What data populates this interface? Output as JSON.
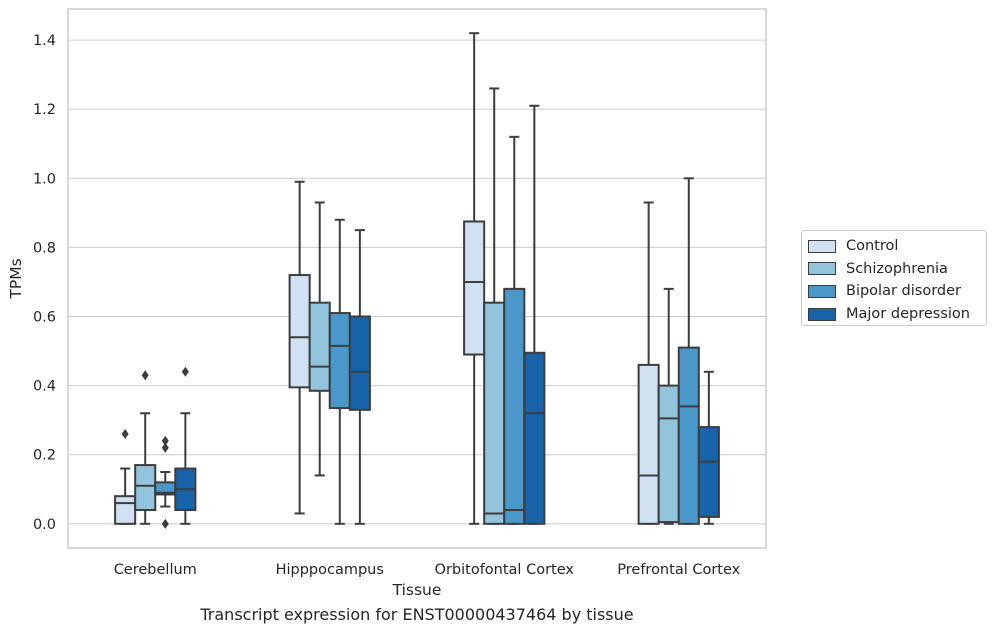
{
  "caption": "Transcript expression for ENST00000437464 by tissue",
  "chart_data": {
    "type": "boxplot",
    "title": "",
    "xlabel": "Tissue",
    "ylabel": "TPMs",
    "ylim": [
      -0.07,
      1.49
    ],
    "yticks": [
      0.0,
      0.2,
      0.4,
      0.6,
      0.8,
      1.0,
      1.2,
      1.4
    ],
    "ytick_labels": [
      "0.0",
      "0.2",
      "0.4",
      "0.6",
      "0.8",
      "1.0",
      "1.2",
      "1.4"
    ],
    "grid": "horizontal",
    "legend_position": "right",
    "categories": [
      "Cerebellum",
      "Hipppocampus",
      "Orbitofontal Cortex",
      "Prefrontal Cortex"
    ],
    "series": [
      {
        "name": "Control",
        "color": "#cfe1f2",
        "boxes": [
          {
            "whisker_low": 0.0,
            "q1": 0.0,
            "median": 0.06,
            "q3": 0.08,
            "whisker_high": 0.16,
            "outliers": [
              0.26
            ]
          },
          {
            "whisker_low": 0.03,
            "q1": 0.395,
            "median": 0.54,
            "q3": 0.72,
            "whisker_high": 0.99,
            "outliers": []
          },
          {
            "whisker_low": 0.0,
            "q1": 0.49,
            "median": 0.7,
            "q3": 0.875,
            "whisker_high": 1.42,
            "outliers": []
          },
          {
            "whisker_low": 0.0,
            "q1": 0.0,
            "median": 0.14,
            "q3": 0.46,
            "whisker_high": 0.93,
            "outliers": []
          }
        ]
      },
      {
        "name": "Schizophrenia",
        "color": "#93c4de",
        "boxes": [
          {
            "whisker_low": 0.0,
            "q1": 0.04,
            "median": 0.11,
            "q3": 0.17,
            "whisker_high": 0.32,
            "outliers": [
              0.43
            ]
          },
          {
            "whisker_low": 0.14,
            "q1": 0.385,
            "median": 0.455,
            "q3": 0.64,
            "whisker_high": 0.93,
            "outliers": []
          },
          {
            "whisker_low": 0.0,
            "q1": 0.0,
            "median": 0.03,
            "q3": 0.64,
            "whisker_high": 1.26,
            "outliers": []
          },
          {
            "whisker_low": 0.0,
            "q1": 0.005,
            "median": 0.305,
            "q3": 0.4,
            "whisker_high": 0.68,
            "outliers": []
          }
        ]
      },
      {
        "name": "Bipolar disorder",
        "color": "#4a98c9",
        "boxes": [
          {
            "whisker_low": 0.05,
            "q1": 0.085,
            "median": 0.09,
            "q3": 0.12,
            "whisker_high": 0.15,
            "outliers": [
              0.0,
              0.22,
              0.24
            ]
          },
          {
            "whisker_low": 0.0,
            "q1": 0.335,
            "median": 0.515,
            "q3": 0.61,
            "whisker_high": 0.88,
            "outliers": []
          },
          {
            "whisker_low": 0.0,
            "q1": 0.0,
            "median": 0.04,
            "q3": 0.68,
            "whisker_high": 1.12,
            "outliers": []
          },
          {
            "whisker_low": 0.0,
            "q1": 0.0,
            "median": 0.34,
            "q3": 0.51,
            "whisker_high": 1.0,
            "outliers": []
          }
        ]
      },
      {
        "name": "Major depression",
        "color": "#1764ab",
        "boxes": [
          {
            "whisker_low": 0.0,
            "q1": 0.04,
            "median": 0.1,
            "q3": 0.16,
            "whisker_high": 0.32,
            "outliers": [
              0.44
            ]
          },
          {
            "whisker_low": 0.0,
            "q1": 0.33,
            "median": 0.44,
            "q3": 0.6,
            "whisker_high": 0.85,
            "outliers": []
          },
          {
            "whisker_low": 0.0,
            "q1": 0.0,
            "median": 0.32,
            "q3": 0.495,
            "whisker_high": 1.21,
            "outliers": []
          },
          {
            "whisker_low": 0.0,
            "q1": 0.02,
            "median": 0.18,
            "q3": 0.28,
            "whisker_high": 0.44,
            "outliers": []
          }
        ]
      }
    ]
  }
}
